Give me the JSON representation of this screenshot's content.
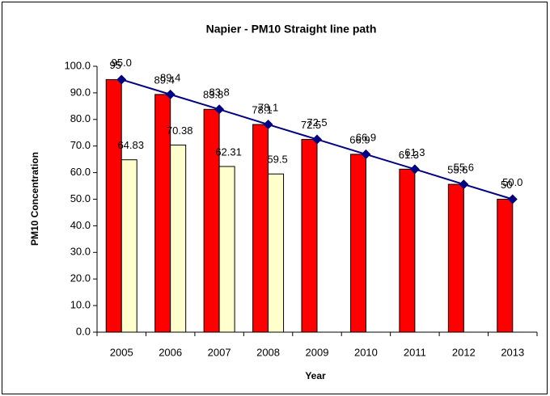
{
  "chart_data": {
    "type": "bar",
    "title": "Napier - PM10 Straight line path",
    "x_label": "Year",
    "y_label": "PM10 Concentration",
    "categories": [
      "2005",
      "2006",
      "2007",
      "2008",
      "2009",
      "2010",
      "2011",
      "2012",
      "2013"
    ],
    "series": [
      {
        "type": "bar",
        "color": "#ff0000",
        "values": [
          95.0,
          89.4,
          83.8,
          78.1,
          72.5,
          66.9,
          61.3,
          55.6,
          50.0
        ]
      },
      {
        "type": "bar",
        "color": "#ffffcc",
        "values": [
          64.83,
          70.38,
          62.31,
          59.5,
          null,
          null,
          null,
          null,
          null
        ]
      },
      {
        "type": "line",
        "color": "#000080",
        "values": [
          95.0,
          89.4,
          83.8,
          78.1,
          72.5,
          66.9,
          61.3,
          55.6,
          50.0
        ],
        "value_labels": [
          "95.0",
          "89.4",
          "83.8",
          "78.1",
          "72.5",
          "66.9",
          "61.3",
          "55.6",
          "50.0"
        ]
      }
    ],
    "ylim": [
      0,
      100
    ],
    "yticks": [
      {
        "value": 0,
        "label": "0.0"
      },
      {
        "value": 10,
        "label": "10.0"
      },
      {
        "value": 20,
        "label": "20.0"
      },
      {
        "value": 30,
        "label": "30.0"
      },
      {
        "value": 40,
        "label": "40.0"
      },
      {
        "value": 50,
        "label": "50.0"
      },
      {
        "value": 60,
        "label": "60.0"
      },
      {
        "value": 70,
        "label": "70.0"
      },
      {
        "value": 80,
        "label": "80.0"
      },
      {
        "value": 90,
        "label": "90.0"
      },
      {
        "value": 100,
        "label": "100.0"
      }
    ],
    "grid": false
  }
}
